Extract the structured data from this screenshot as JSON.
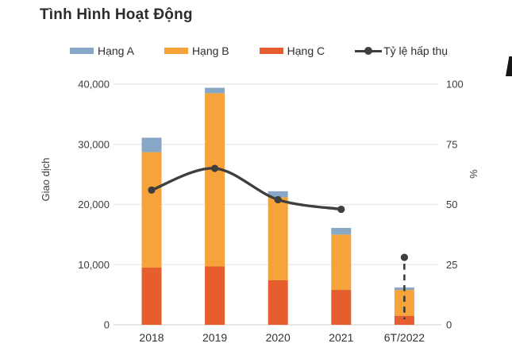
{
  "page": {
    "title": "Tình Hình Hoạt Động"
  },
  "colors": {
    "hang_a": "#86A7C5",
    "hang_b": "#F6A33C",
    "hang_c": "#E65D2E",
    "line": "#3F3F3F",
    "gridline": "#E8E8E8",
    "axis_line": "#D8D8D6",
    "title_text": "#2C2C2C",
    "tick_text": "#3D3D3D"
  },
  "legend": [
    {
      "label": "Hạng A",
      "marker": "rect",
      "color": "#86A7C5"
    },
    {
      "label": "Hạng B",
      "marker": "rect",
      "color": "#F6A33C"
    },
    {
      "label": "Hạng C",
      "marker": "rect",
      "color": "#E65D2E"
    },
    {
      "label": "Tỷ lệ hấp thụ",
      "marker": "line-dot",
      "color": "#3F3F3F"
    }
  ],
  "chart_data": {
    "type": "combo-stacked-bar-line",
    "title": "Tình Hình Hoạt Động",
    "categories": [
      "2018",
      "2019",
      "2020",
      "2021",
      "6T/2022"
    ],
    "bar_series": [
      {
        "name": "Hạng C",
        "color": "#E65D2E",
        "values": [
          9500,
          9700,
          7400,
          5800,
          1500
        ]
      },
      {
        "name": "Hạng B",
        "color": "#F6A33C",
        "values": [
          19200,
          28800,
          13800,
          9200,
          4300
        ]
      },
      {
        "name": "Hạng A",
        "color": "#86A7C5",
        "values": [
          2400,
          900,
          1000,
          1100,
          400
        ]
      }
    ],
    "bar_totals": [
      31100,
      39400,
      22200,
      16100,
      6200
    ],
    "line_series": {
      "name": "Tỷ lệ hấp thụ",
      "color": "#3F3F3F",
      "values": [
        56,
        65,
        52,
        48,
        null
      ],
      "projected_point": {
        "category": "6T/2022",
        "value": 28,
        "style": "isolated-dot-with-dashed-drop"
      }
    },
    "left_axis": {
      "label": "Giao dịch",
      "min": 0,
      "max": 40000,
      "tick_labels": [
        "0",
        "10,000",
        "20,000",
        "30,000",
        "40,000"
      ]
    },
    "right_axis": {
      "label": "%",
      "min": 0,
      "max": 100,
      "tick_labels": [
        "0",
        "25",
        "50",
        "75",
        "100"
      ]
    },
    "grid": true,
    "legend_position": "top"
  },
  "decor": {
    "edge_glyph": "clipped-dark-glyph"
  }
}
